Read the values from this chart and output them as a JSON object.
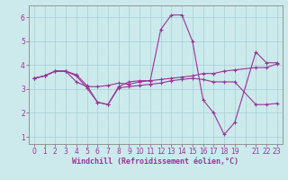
{
  "xlabel": "Windchill (Refroidissement éolien,°C)",
  "bg_color": "#cceaec",
  "grid_color": "#aad4d8",
  "line_color": "#993399",
  "xlim": [
    -0.5,
    23.5
  ],
  "ylim": [
    0.7,
    6.5
  ],
  "xticks": [
    0,
    1,
    2,
    3,
    4,
    5,
    6,
    7,
    8,
    9,
    10,
    11,
    12,
    13,
    14,
    15,
    16,
    17,
    18,
    19,
    20,
    21,
    22,
    23
  ],
  "xtick_labels": [
    "0",
    "1",
    "2",
    "3",
    "4",
    "5",
    "6",
    "7",
    "8",
    "9",
    "10",
    "11",
    "12",
    "13",
    "14",
    "15",
    "16",
    "17",
    "18",
    "19",
    "",
    "21",
    "22",
    "23"
  ],
  "yticks": [
    1,
    2,
    3,
    4,
    5,
    6
  ],
  "line1_x": [
    0,
    1,
    2,
    3,
    4,
    5,
    6,
    7,
    8,
    9,
    10,
    11,
    12,
    13,
    14,
    15,
    16,
    17,
    18,
    19,
    21,
    22,
    23
  ],
  "line1_y": [
    3.45,
    3.55,
    3.75,
    3.75,
    3.6,
    3.15,
    2.45,
    2.35,
    3.1,
    3.3,
    3.35,
    3.35,
    5.5,
    6.1,
    6.1,
    5.0,
    2.55,
    2.0,
    1.1,
    1.6,
    4.55,
    4.1,
    4.1
  ],
  "line2_x": [
    0,
    1,
    2,
    3,
    4,
    5,
    6,
    7,
    8,
    9,
    10,
    11,
    12,
    13,
    14,
    15,
    16,
    17,
    18,
    19,
    21,
    22,
    23
  ],
  "line2_y": [
    3.45,
    3.55,
    3.75,
    3.75,
    3.3,
    3.1,
    3.1,
    3.15,
    3.25,
    3.2,
    3.3,
    3.35,
    3.4,
    3.45,
    3.5,
    3.55,
    3.65,
    3.65,
    3.75,
    3.8,
    3.9,
    3.9,
    4.05
  ],
  "line3_x": [
    0,
    1,
    2,
    3,
    4,
    5,
    6,
    7,
    8,
    9,
    10,
    11,
    12,
    13,
    14,
    15,
    16,
    17,
    18,
    19,
    21,
    22,
    23
  ],
  "line3_y": [
    3.45,
    3.55,
    3.75,
    3.75,
    3.55,
    3.05,
    2.45,
    2.35,
    3.05,
    3.1,
    3.15,
    3.2,
    3.25,
    3.35,
    3.4,
    3.45,
    3.4,
    3.3,
    3.3,
    3.3,
    2.35,
    2.35,
    2.4
  ],
  "marker": "+",
  "markersize": 3.5,
  "linewidth": 0.8,
  "tick_fontsize": 5.5,
  "xlabel_fontsize": 6.0
}
